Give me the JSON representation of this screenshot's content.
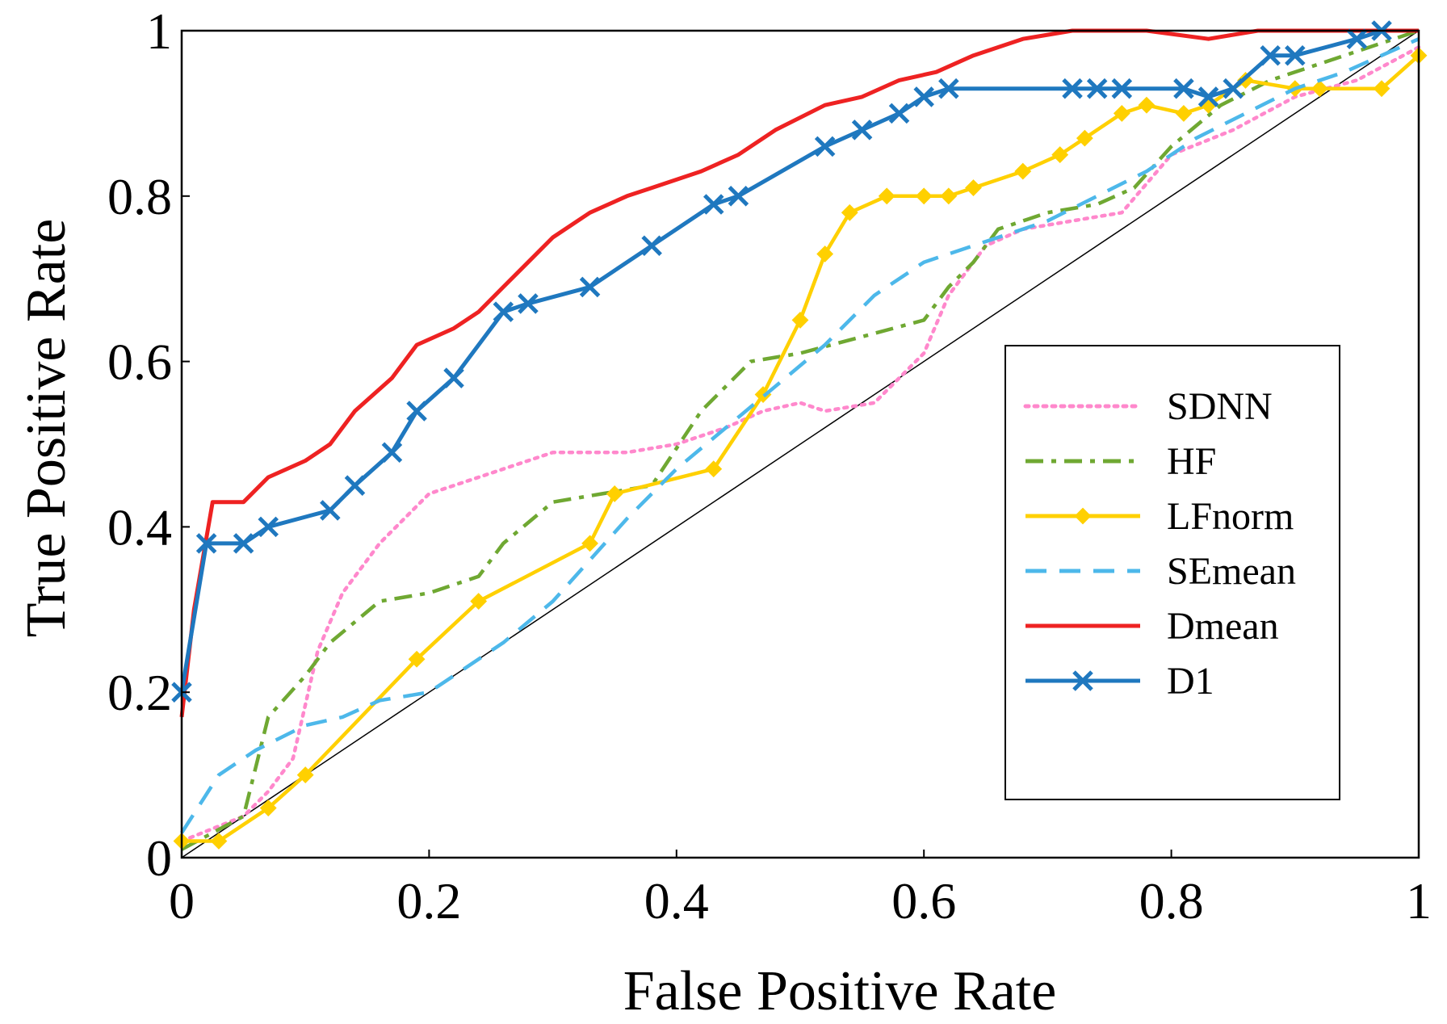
{
  "chart_data": {
    "type": "line",
    "title": "",
    "xlabel": "False Positive Rate",
    "ylabel": "True Positive Rate",
    "xlim": [
      0,
      1
    ],
    "ylim": [
      0,
      1
    ],
    "xticks": [
      "0",
      "0.2",
      "0.4",
      "0.6",
      "0.8",
      "1"
    ],
    "yticks": [
      "0",
      "0.2",
      "0.4",
      "0.6",
      "0.8",
      "1"
    ],
    "grid": false,
    "legend_position": "center-right",
    "reference_line": {
      "x": [
        0,
        1
      ],
      "y": [
        0,
        1
      ],
      "color": "#000000"
    },
    "series": [
      {
        "name": "SDNN",
        "color": "#ff88cc",
        "style": "dotted",
        "marker": "none",
        "x": [
          0,
          0.05,
          0.07,
          0.09,
          0.11,
          0.13,
          0.16,
          0.2,
          0.24,
          0.3,
          0.36,
          0.4,
          0.44,
          0.47,
          0.5,
          0.52,
          0.56,
          0.58,
          0.6,
          0.62,
          0.65,
          0.68,
          0.72,
          0.76,
          0.8,
          0.85,
          0.9,
          0.95,
          1.0
        ],
        "y": [
          0.02,
          0.05,
          0.08,
          0.12,
          0.25,
          0.32,
          0.38,
          0.44,
          0.46,
          0.49,
          0.49,
          0.5,
          0.52,
          0.54,
          0.55,
          0.54,
          0.55,
          0.58,
          0.61,
          0.68,
          0.74,
          0.76,
          0.77,
          0.78,
          0.85,
          0.88,
          0.92,
          0.94,
          0.98
        ]
      },
      {
        "name": "HF",
        "color": "#6fa832",
        "style": "dashdot",
        "marker": "none",
        "x": [
          0,
          0.05,
          0.07,
          0.1,
          0.12,
          0.16,
          0.2,
          0.24,
          0.26,
          0.3,
          0.34,
          0.38,
          0.42,
          0.46,
          0.5,
          0.55,
          0.6,
          0.62,
          0.64,
          0.66,
          0.7,
          0.74,
          0.77,
          0.8,
          0.84,
          0.88,
          0.92,
          0.96,
          1.0
        ],
        "y": [
          0.01,
          0.05,
          0.17,
          0.22,
          0.26,
          0.31,
          0.32,
          0.34,
          0.38,
          0.43,
          0.44,
          0.45,
          0.54,
          0.6,
          0.61,
          0.63,
          0.65,
          0.69,
          0.72,
          0.76,
          0.78,
          0.79,
          0.81,
          0.86,
          0.91,
          0.94,
          0.96,
          0.98,
          1.0
        ]
      },
      {
        "name": "LFnorm",
        "color": "#ffd000",
        "style": "solid",
        "marker": "diamond",
        "x": [
          0,
          0.03,
          0.07,
          0.1,
          0.19,
          0.24,
          0.33,
          0.35,
          0.43,
          0.47,
          0.5,
          0.52,
          0.54,
          0.57,
          0.6,
          0.62,
          0.64,
          0.68,
          0.71,
          0.73,
          0.76,
          0.78,
          0.81,
          0.83,
          0.86,
          0.9,
          0.92,
          0.97,
          1.0
        ],
        "y": [
          0.02,
          0.02,
          0.06,
          0.1,
          0.24,
          0.31,
          0.38,
          0.44,
          0.47,
          0.56,
          0.65,
          0.73,
          0.78,
          0.8,
          0.8,
          0.8,
          0.81,
          0.83,
          0.85,
          0.87,
          0.9,
          0.91,
          0.9,
          0.91,
          0.94,
          0.93,
          0.93,
          0.93,
          0.97
        ]
      },
      {
        "name": "SEmean",
        "color": "#4db8ea",
        "style": "dashed",
        "marker": "none",
        "x": [
          0,
          0.03,
          0.06,
          0.1,
          0.13,
          0.16,
          0.2,
          0.22,
          0.26,
          0.3,
          0.33,
          0.36,
          0.4,
          0.44,
          0.48,
          0.52,
          0.56,
          0.6,
          0.64,
          0.66,
          0.7,
          0.74,
          0.78,
          0.82,
          0.86,
          0.9,
          0.94,
          0.97,
          1.0
        ],
        "y": [
          0.03,
          0.1,
          0.13,
          0.16,
          0.17,
          0.19,
          0.2,
          0.22,
          0.26,
          0.31,
          0.36,
          0.41,
          0.47,
          0.52,
          0.57,
          0.62,
          0.68,
          0.72,
          0.74,
          0.75,
          0.77,
          0.8,
          0.83,
          0.87,
          0.9,
          0.93,
          0.95,
          0.97,
          0.99
        ]
      },
      {
        "name": "Dmean",
        "color": "#ee2222",
        "style": "solid",
        "marker": "none",
        "x": [
          0,
          0.01,
          0.025,
          0.05,
          0.07,
          0.1,
          0.12,
          0.14,
          0.17,
          0.19,
          0.22,
          0.24,
          0.26,
          0.28,
          0.3,
          0.33,
          0.36,
          0.38,
          0.42,
          0.45,
          0.48,
          0.52,
          0.55,
          0.58,
          0.61,
          0.64,
          0.68,
          0.72,
          0.78,
          0.83,
          0.87,
          0.91,
          0.96,
          1.0
        ],
        "y": [
          0.17,
          0.3,
          0.43,
          0.43,
          0.46,
          0.48,
          0.5,
          0.54,
          0.58,
          0.62,
          0.64,
          0.66,
          0.69,
          0.72,
          0.75,
          0.78,
          0.8,
          0.81,
          0.83,
          0.85,
          0.88,
          0.91,
          0.92,
          0.94,
          0.95,
          0.97,
          0.99,
          1.0,
          1.0,
          0.99,
          1.0,
          1.0,
          1.0,
          1.0
        ]
      },
      {
        "name": "D1",
        "color": "#1f78bf",
        "style": "solid",
        "marker": "x",
        "x": [
          0,
          0.02,
          0.05,
          0.07,
          0.12,
          0.14,
          0.17,
          0.19,
          0.22,
          0.26,
          0.28,
          0.33,
          0.38,
          0.43,
          0.45,
          0.52,
          0.55,
          0.58,
          0.6,
          0.62,
          0.72,
          0.74,
          0.76,
          0.81,
          0.83,
          0.85,
          0.88,
          0.9,
          0.95,
          0.97
        ],
        "y": [
          0.2,
          0.38,
          0.38,
          0.4,
          0.42,
          0.45,
          0.49,
          0.54,
          0.58,
          0.66,
          0.67,
          0.69,
          0.74,
          0.79,
          0.8,
          0.86,
          0.88,
          0.9,
          0.92,
          0.93,
          0.93,
          0.93,
          0.93,
          0.93,
          0.92,
          0.93,
          0.97,
          0.97,
          0.99,
          1.0
        ]
      }
    ]
  }
}
